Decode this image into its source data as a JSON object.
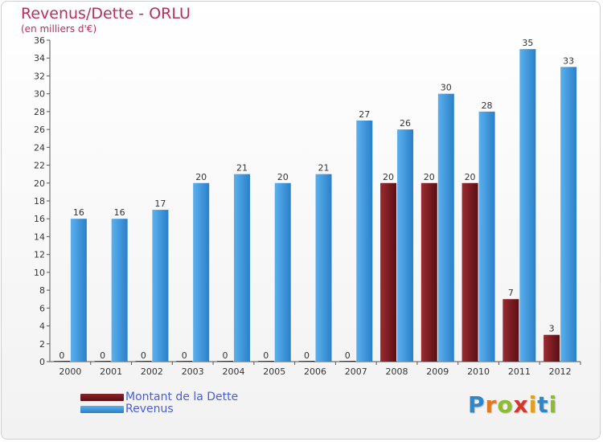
{
  "chart_data": {
    "type": "bar",
    "title": "Revenus/Dette - ORLU",
    "subtitle": "(en milliers d'€)",
    "categories": [
      "2000",
      "2001",
      "2002",
      "2003",
      "2004",
      "2005",
      "2006",
      "2007",
      "2008",
      "2009",
      "2010",
      "2011",
      "2012"
    ],
    "series": [
      {
        "name": "Montant de la Dette",
        "color": "#7a1f24",
        "values": [
          0,
          0,
          0,
          0,
          0,
          0,
          0,
          0,
          20,
          20,
          20,
          7,
          3
        ]
      },
      {
        "name": "Revenus",
        "color": "#3f9be0",
        "values": [
          16,
          16,
          17,
          20,
          21,
          20,
          21,
          27,
          26,
          30,
          28,
          35,
          33
        ]
      }
    ],
    "ylim": [
      0,
      36
    ],
    "ytick_step": 2,
    "grid": false,
    "legend_position": "bottom-left",
    "value_labels": true
  },
  "logo": {
    "letters": [
      "P",
      "r",
      "o",
      "x",
      "i",
      "t",
      "i"
    ],
    "colors": [
      "#2f86c8",
      "#e07a1e",
      "#8cbd2a",
      "#d7342b",
      "#e0a21e",
      "#2f86c8",
      "#8cbd2a"
    ]
  }
}
